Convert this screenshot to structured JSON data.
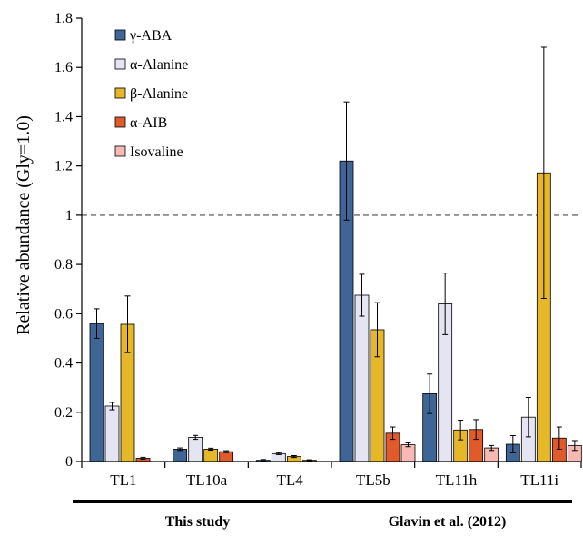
{
  "chart_data": {
    "type": "bar",
    "title": "",
    "xlabel": "",
    "ylabel": "Relative abundance (Gly=1.0)",
    "ylim": [
      0,
      1.8
    ],
    "yticks": [
      "0",
      "0.2",
      "0.4",
      "0.6",
      "0.8",
      "1",
      "1.2",
      "1.4",
      "1.6",
      "1.8"
    ],
    "ytick_values": [
      0,
      0.2,
      0.4,
      0.6,
      0.8,
      1.0,
      1.2,
      1.4,
      1.6,
      1.8
    ],
    "categories": [
      "TL1",
      "TL10a",
      "TL4",
      "TL5b",
      "TL11h",
      "TL11i"
    ],
    "reference_line": 1.0,
    "legend_position": "top-left",
    "series": [
      {
        "name": "γ-ABA",
        "color": "#3f6496",
        "values": [
          0.56,
          0.05,
          0.005,
          1.22,
          0.275,
          0.07
        ],
        "errors": [
          0.06,
          0.005,
          0.003,
          0.24,
          0.08,
          0.035
        ]
      },
      {
        "name": "α-Alanine",
        "color": "#e4e4f2",
        "values": [
          0.225,
          0.098,
          0.032,
          0.675,
          0.64,
          0.18
        ],
        "errors": [
          0.015,
          0.008,
          0.004,
          0.085,
          0.125,
          0.08
        ]
      },
      {
        "name": "β-Alanine",
        "color": "#e6b729",
        "values": [
          0.557,
          0.05,
          0.02,
          0.535,
          0.128,
          1.172
        ],
        "errors": [
          0.115,
          0.004,
          0.004,
          0.11,
          0.04,
          0.51
        ]
      },
      {
        "name": "α-AIB",
        "color": "#e05a2b",
        "values": [
          0.013,
          0.04,
          0.005,
          0.115,
          0.13,
          0.095
        ],
        "errors": [
          0.004,
          0.004,
          0.002,
          0.025,
          0.04,
          0.045
        ]
      },
      {
        "name": "Isovaline",
        "color": "#f6b9b4",
        "values": [
          0.0,
          0.0,
          0.0,
          0.068,
          0.055,
          0.065
        ],
        "errors": [
          0.0,
          0.0,
          0.0,
          0.008,
          0.01,
          0.02
        ]
      }
    ],
    "groups": [
      {
        "label": "This study",
        "categories": [
          "TL1",
          "TL10a",
          "TL4"
        ]
      },
      {
        "label": "Glavin et al. (2012)",
        "categories": [
          "TL5b",
          "TL11h",
          "TL11i"
        ]
      }
    ]
  }
}
